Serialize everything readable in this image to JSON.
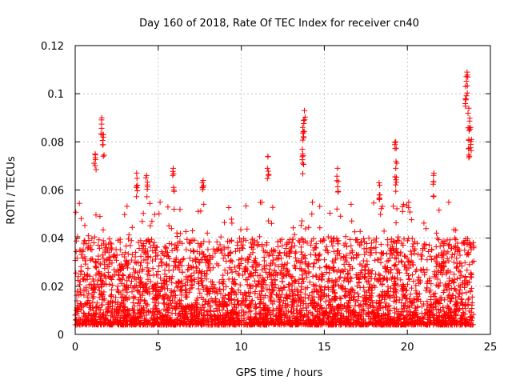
{
  "chart_data": {
    "type": "scatter",
    "title": "Day 160 of 2018, Rate Of TEC Index for receiver cn40",
    "xlabel": "GPS time / hours",
    "ylabel": "ROTI / TECUs",
    "xlim": [
      0,
      25
    ],
    "ylim": [
      0,
      0.12
    ],
    "xticks": [
      0,
      5,
      10,
      15,
      20,
      25
    ],
    "xtick_labels": [
      "0",
      "5",
      "10",
      "15",
      "20",
      "25"
    ],
    "yticks": [
      0,
      0.02,
      0.04,
      0.06,
      0.08,
      0.1,
      0.12
    ],
    "ytick_labels": [
      "0",
      "0.02",
      "0.04",
      "0.06",
      "0.08",
      "0.1",
      "0.12"
    ],
    "grid": true,
    "marker": "+",
    "color": "#ff0000",
    "series": [
      {
        "name": "ROTI",
        "n_points_estimated": 4000,
        "x_range": [
          0,
          24
        ],
        "typical_band": [
          0.005,
          0.04
        ],
        "notable_peaks": [
          {
            "x": 1.6,
            "y": 0.09
          },
          {
            "x": 1.7,
            "y": 0.083
          },
          {
            "x": 1.2,
            "y": 0.075
          },
          {
            "x": 3.7,
            "y": 0.067
          },
          {
            "x": 4.3,
            "y": 0.066
          },
          {
            "x": 5.9,
            "y": 0.069
          },
          {
            "x": 7.7,
            "y": 0.064
          },
          {
            "x": 11.6,
            "y": 0.074
          },
          {
            "x": 13.8,
            "y": 0.093
          },
          {
            "x": 13.7,
            "y": 0.086
          },
          {
            "x": 13.7,
            "y": 0.075
          },
          {
            "x": 15.8,
            "y": 0.069
          },
          {
            "x": 18.3,
            "y": 0.063
          },
          {
            "x": 19.3,
            "y": 0.08
          },
          {
            "x": 19.3,
            "y": 0.069
          },
          {
            "x": 21.6,
            "y": 0.067
          },
          {
            "x": 23.6,
            "y": 0.109
          },
          {
            "x": 23.5,
            "y": 0.103
          },
          {
            "x": 23.7,
            "y": 0.094
          },
          {
            "x": 23.8,
            "y": 0.086
          },
          {
            "x": 23.7,
            "y": 0.081
          }
        ]
      }
    ]
  }
}
